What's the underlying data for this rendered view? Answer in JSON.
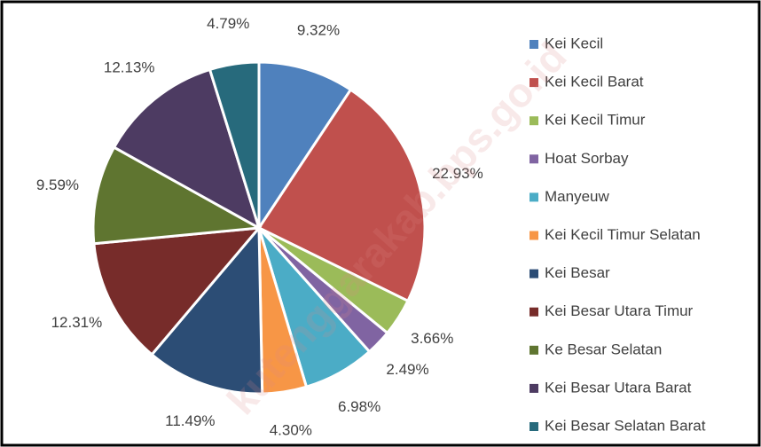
{
  "chart_data": {
    "type": "pie",
    "categories": [
      "Kei Kecil",
      "Kei Kecil Barat",
      "Kei Kecil Timur",
      "Hoat Sorbay",
      "Manyeuw",
      "Kei Kecil Timur Selatan",
      "Kei Besar",
      "Kei Besar Utara Timur",
      "Ke Besar Selatan",
      "Kei Besar Utara Barat",
      "Kei Besar Selatan Barat"
    ],
    "values": [
      9.32,
      22.93,
      3.66,
      2.49,
      6.98,
      4.3,
      11.49,
      12.31,
      9.59,
      12.13,
      4.79
    ],
    "value_labels": [
      "9.32%",
      "22.93%",
      "3.66%",
      "2.49%",
      "6.98%",
      "4.30%",
      "11.49%",
      "12.31%",
      "9.59%",
      "12.13%",
      "4.79%"
    ],
    "colors": [
      "#4f81bd",
      "#c0504d",
      "#9bbb59",
      "#8064a2",
      "#4bacc6",
      "#f79646",
      "#2c4d75",
      "#772c2a",
      "#5f7530",
      "#4d3b62",
      "#276a7c"
    ],
    "legend": "right",
    "watermark": "kutenggarakab.bps.go.id"
  }
}
